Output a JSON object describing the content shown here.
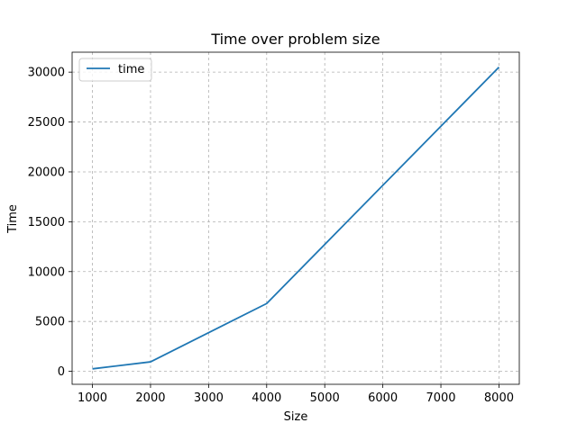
{
  "chart_data": {
    "type": "line",
    "title": "Time over problem size",
    "xlabel": "Size",
    "ylabel": "Time",
    "xlim": [
      650,
      8350
    ],
    "ylim": [
      -1300,
      32000
    ],
    "xticks": [
      1000,
      2000,
      3000,
      4000,
      5000,
      6000,
      7000,
      8000
    ],
    "yticks": [
      0,
      5000,
      10000,
      15000,
      20000,
      25000,
      30000
    ],
    "grid": true,
    "legend_position": "top-left",
    "series": [
      {
        "name": "time",
        "color": "#1f77b4",
        "x": [
          1000,
          2000,
          4000,
          8000
        ],
        "y": [
          250,
          950,
          6800,
          30500
        ]
      }
    ]
  }
}
